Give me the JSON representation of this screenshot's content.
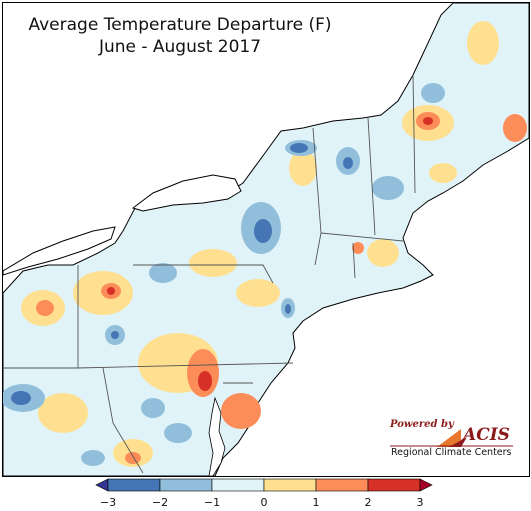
{
  "title": {
    "line1": "Average Temperature Departure (F)",
    "line2": "June - August 2017"
  },
  "legend": {
    "ticks": [
      "−3",
      "−2",
      "−1",
      "0",
      "1",
      "2",
      "3"
    ],
    "colors": [
      "#4575b4",
      "#91bfdb",
      "#e0f3f8",
      "#fee090",
      "#fc8d59",
      "#d73027"
    ],
    "arrow_low_color": "#313695",
    "arrow_high_color": "#a50026"
  },
  "logo": {
    "powered_by": "Powered by",
    "name": "ACIS",
    "subtitle": "Regional Climate Centers"
  },
  "map": {
    "base_color": "#e0f3f8",
    "water_color": "#ffffff",
    "border_color": "#555555"
  }
}
